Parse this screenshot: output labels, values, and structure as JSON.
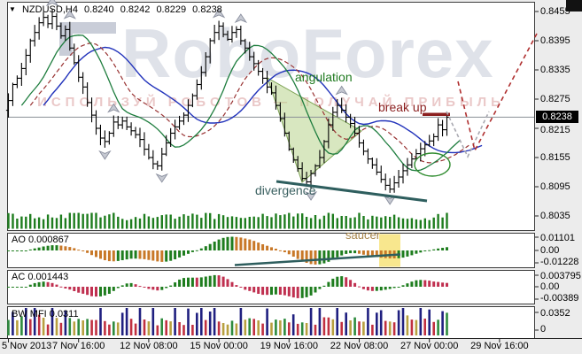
{
  "title": {
    "dropdown": "▼",
    "symbol": "NZDUSD,H4",
    "open": "0.8240",
    "high": "0.8242",
    "low": "0.8229",
    "close": "0.8238"
  },
  "watermark": {
    "brand": "RoboForex",
    "slogan": "ИСПОЛЬЗУЙ РОБОТОВ — ПОЛУЧАЙ ПРИБЫЛЬ"
  },
  "annotations": {
    "angulation": "angulation",
    "break_up": "break up",
    "divergence": "divergence",
    "saucer": "saucer"
  },
  "price_axis": {
    "ticks": [
      "0.8455",
      "0.8395",
      "0.8335",
      "0.8275",
      "0.8215",
      "0.8155",
      "0.8095",
      "0.8035"
    ],
    "current": "0.8238"
  },
  "indicators": {
    "ao": {
      "label": "AO 0.000867",
      "axis": [
        "0.01101",
        "0.00",
        "-0.01228"
      ]
    },
    "ac": {
      "label": "AC 0.001443",
      "axis": [
        "0.003795",
        "0.00",
        "-0.00389"
      ]
    },
    "mfi": {
      "label": "BW MFI 0.0311",
      "axis": [
        "0.0352",
        "0"
      ]
    }
  },
  "time_axis": [
    "5 Nov 2013",
    "7 Nov 16:00",
    "12 Nov 08:00",
    "15 Nov 00:00",
    "19 Nov 16:00",
    "22 Nov 08:00",
    "27 Nov 00:00",
    "29 Nov 16:00"
  ],
  "colors": {
    "bar": "#000000",
    "volume": "#1e7d1e",
    "ao_up": "#1e7d1e",
    "ao_down": "#c87828",
    "ac_up": "#1e7d1e",
    "ac_down": "#c03050",
    "mfi_green": "#2e8b3e",
    "mfi_fade": "#b8a040",
    "mfi_squat": "#c03040",
    "mfi_fake": "#202080",
    "jaw": "#2233bb",
    "teeth": "#993333",
    "lips": "#1e7d3e",
    "price_line": "#8a9096",
    "break_line": "#8b1f1f",
    "forecast": "#b03030",
    "forecast2": "#a8a8b0",
    "teal": "#2e5e5e",
    "highlight": "#f7e37a",
    "wedge_fill": "rgba(178,208,130,0.5)",
    "wedge_edge": "#7aa050",
    "ellipse": "#2e8b2e",
    "fractal_fill": "#c6c9d2",
    "fractal_edge": "#8a8f9e",
    "axis_text": "#000000",
    "tag_bg": "#000000",
    "tag_text": "#ffffff"
  },
  "chart_data": {
    "type": "ohlc-candlestick multi-panel",
    "symbol": "NZDUSD",
    "timeframe": "H4",
    "title_ohlc": {
      "open": 0.824,
      "high": 0.8242,
      "low": 0.8229,
      "close": 0.8238
    },
    "price_axis_range": [
      0.8035,
      0.8455
    ],
    "current_price": 0.8238,
    "first_open": 0.8252,
    "closes": [
      0.8272,
      0.8305,
      0.8318,
      0.8338,
      0.8365,
      0.8395,
      0.8412,
      0.8432,
      0.8443,
      0.843,
      0.8445,
      0.8425,
      0.8405,
      0.8418,
      0.838,
      0.835,
      0.832,
      0.83,
      0.8268,
      0.8242,
      0.8215,
      0.8195,
      0.8188,
      0.8205,
      0.8228,
      0.8222,
      0.823,
      0.8218,
      0.821,
      0.8202,
      0.8192,
      0.8172,
      0.8155,
      0.8142,
      0.8138,
      0.8162,
      0.8185,
      0.8205,
      0.8218,
      0.823,
      0.8242,
      0.8262,
      0.8282,
      0.8305,
      0.833,
      0.8362,
      0.8395,
      0.8412,
      0.8425,
      0.8408,
      0.8398,
      0.8412,
      0.8418,
      0.8395,
      0.838,
      0.8362,
      0.8348,
      0.8332,
      0.8318,
      0.83,
      0.8288,
      0.8262,
      0.8235,
      0.8205,
      0.8172,
      0.815,
      0.8132,
      0.8112,
      0.8105,
      0.8122,
      0.8138,
      0.8155,
      0.8188,
      0.8222,
      0.8248,
      0.8262,
      0.8252,
      0.8238,
      0.8225,
      0.8205,
      0.8185,
      0.8168,
      0.8152,
      0.814,
      0.8125,
      0.811,
      0.8098,
      0.809,
      0.8103,
      0.8115,
      0.8128,
      0.814,
      0.8152,
      0.8163,
      0.8173,
      0.8181,
      0.8189,
      0.8198,
      0.8222,
      0.8212,
      0.8238
    ],
    "x_tick_bars": [
      0,
      16,
      32,
      48,
      64,
      80,
      96,
      112
    ],
    "panels": [
      {
        "name": "main",
        "overlays": [
          "Alligator jaw (blue)",
          "Alligator teeth (red dashed)",
          "Alligator lips (green)",
          "Bill Williams fractal arrows",
          "tick volume"
        ],
        "range_hi": 0.01101
      },
      {
        "name": "AO Awesome Oscillator",
        "value": 0.000867,
        "axis_max": 0.01101,
        "axis_min": -0.01228
      },
      {
        "name": "AC Accelerator Oscillator",
        "value": 0.001443,
        "axis_max": 0.003795,
        "axis_min": -0.00389
      },
      {
        "name": "BW MFI",
        "value": 0.0311,
        "axis_max": 0.0352,
        "axis_min": 0
      }
    ],
    "drawn_objects": {
      "angulation_wedge": "green shaded wedge on decline around 19-20 Nov",
      "divergence_line": "descending teal line under lows from 20 Nov to 26 Nov",
      "break_up_level": "short dark-red horizontal segment above last bars near 0.8245",
      "saucer_line": "ascending teal line under AO histogram with yellow highlight zone",
      "forecast": "red dashed V-shaped projection down to ~0.816 then up beyond 0.8395",
      "ellipse": "green ellipse circling the final lows before breakout"
    }
  }
}
